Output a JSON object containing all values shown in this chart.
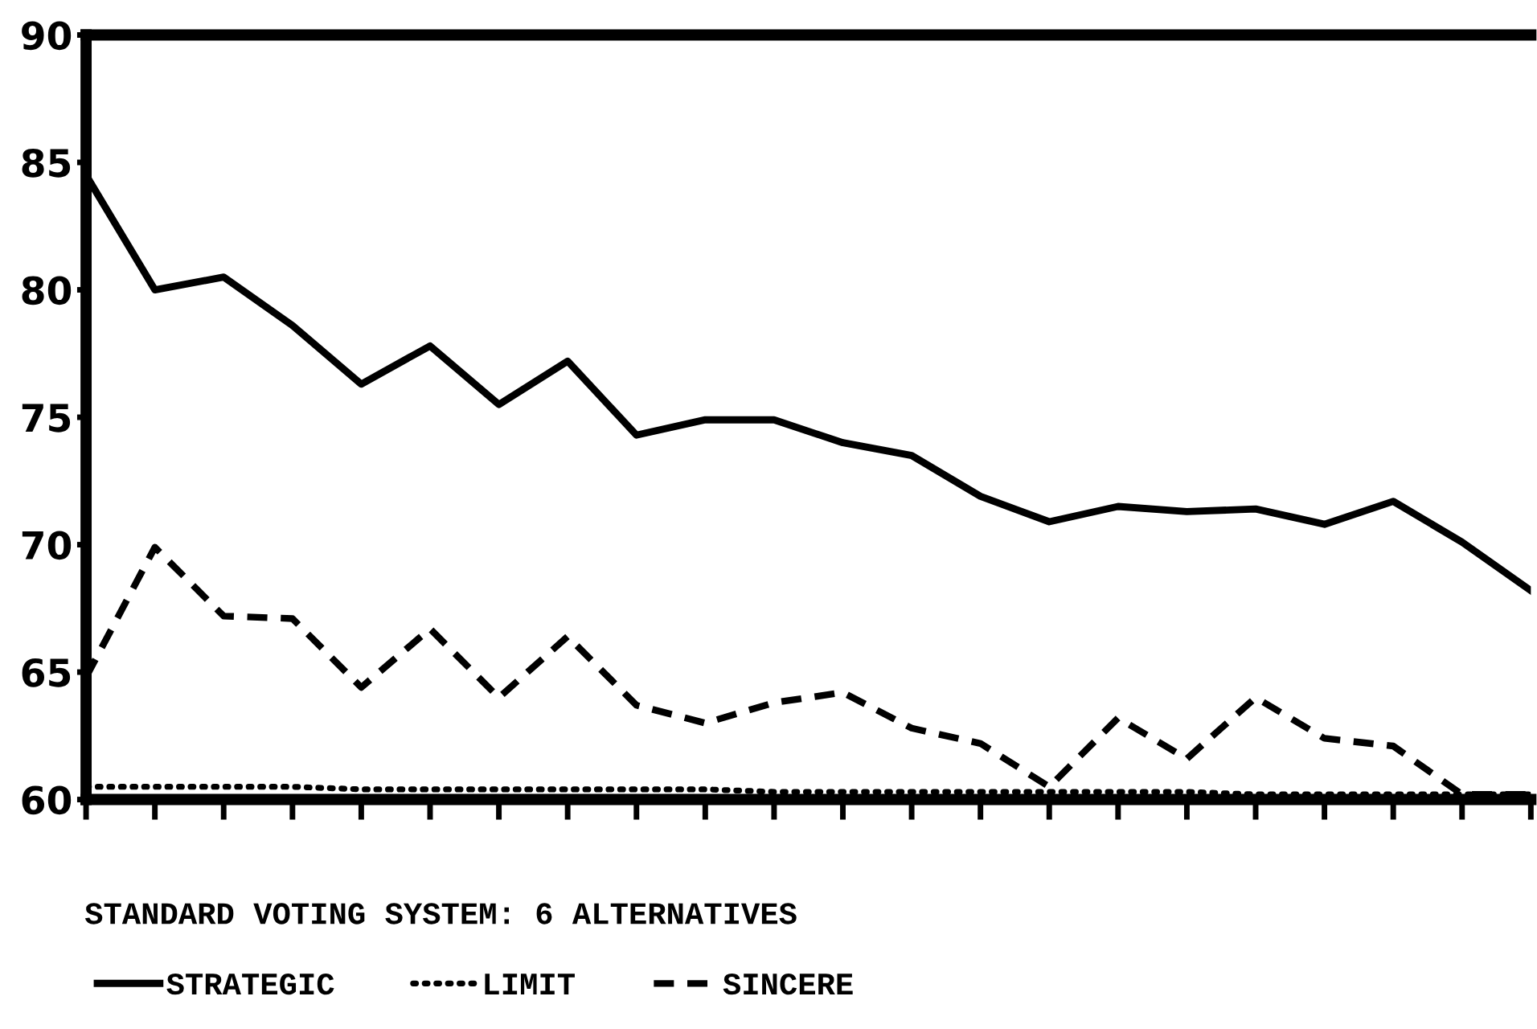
{
  "chart_data": {
    "type": "line",
    "title": "STANDARD VOTING SYSTEM: 6 ALTERNATIVES",
    "categories": [
      null,
      null,
      null,
      null,
      null,
      null,
      null,
      null,
      null,
      null,
      null,
      null,
      null,
      null,
      null,
      null,
      null,
      null,
      null,
      null,
      null,
      null
    ],
    "ylim": [
      60,
      90
    ],
    "yticks": [
      60,
      65,
      70,
      75,
      80,
      85,
      90
    ],
    "legend": "bottom",
    "series": [
      {
        "name": "STRATEGIC",
        "color": "#000000",
        "line_style": "solid",
        "values": [
          84.5,
          80.0,
          80.5,
          78.6,
          76.3,
          77.8,
          75.5,
          77.2,
          74.3,
          74.9,
          74.9,
          74.0,
          73.5,
          71.9,
          70.9,
          71.5,
          71.3,
          71.4,
          70.8,
          71.7,
          70.1,
          68.2
        ]
      },
      {
        "name": "LIMIT",
        "color": "#000000",
        "line_style": "dotted",
        "values": [
          60.5,
          60.5,
          60.5,
          60.5,
          60.4,
          60.4,
          60.4,
          60.4,
          60.4,
          60.4,
          60.3,
          60.3,
          60.3,
          60.3,
          60.3,
          60.3,
          60.3,
          60.2,
          60.2,
          60.2,
          60.2,
          60.2
        ]
      },
      {
        "name": "SINCERE",
        "color": "#000000",
        "line_style": "dashed",
        "values": [
          64.8,
          69.9,
          67.2,
          67.1,
          64.4,
          66.7,
          64.0,
          66.4,
          63.7,
          63.0,
          63.8,
          64.2,
          62.8,
          62.2,
          60.5,
          63.2,
          61.6,
          64.0,
          62.4,
          62.1,
          60.2,
          60.2
        ]
      }
    ]
  }
}
